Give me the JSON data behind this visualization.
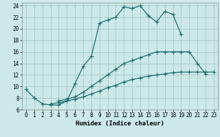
{
  "xlabel": "Humidex (Indice chaleur)",
  "bg_color": "#cce8e8",
  "grid_color": "#aacccc",
  "line_color": "#1a6b6b",
  "xlim": [
    -0.5,
    23.5
  ],
  "ylim": [
    6,
    24.5
  ],
  "xticks": [
    0,
    1,
    2,
    3,
    4,
    5,
    6,
    7,
    8,
    9,
    10,
    11,
    12,
    13,
    14,
    15,
    16,
    17,
    18,
    19,
    20,
    21,
    22,
    23
  ],
  "yticks": [
    6,
    8,
    10,
    12,
    14,
    16,
    18,
    20,
    22,
    24
  ],
  "curve1_x": [
    0,
    1,
    2,
    3,
    4,
    5,
    6,
    7,
    8,
    9,
    10,
    11,
    12,
    13,
    14,
    15,
    16,
    17,
    18,
    19
  ],
  "curve1_y": [
    9.5,
    8.0,
    7.0,
    6.8,
    6.8,
    7.5,
    10.5,
    13.5,
    15.2,
    21.0,
    21.5,
    22.0,
    23.8,
    23.5,
    24.0,
    22.2,
    21.2,
    23.0,
    22.5,
    19.0
  ],
  "curve2_x": [
    4,
    5,
    6,
    7,
    8,
    9,
    10,
    11,
    12,
    13,
    14,
    15,
    16,
    17,
    18,
    19,
    20,
    21,
    22
  ],
  "curve2_y": [
    7.5,
    7.8,
    8.2,
    9.0,
    10.0,
    11.0,
    12.0,
    13.0,
    14.0,
    14.5,
    15.0,
    15.5,
    16.0,
    16.0,
    16.0,
    16.0,
    16.0,
    14.0,
    12.2
  ],
  "curve3_x": [
    3,
    4,
    5,
    6,
    7,
    8,
    9,
    10,
    11,
    12,
    13,
    14,
    15,
    16,
    17,
    18,
    19,
    20,
    21,
    22,
    23
  ],
  "curve3_y": [
    7.0,
    7.2,
    7.5,
    7.8,
    8.2,
    8.7,
    9.2,
    9.8,
    10.2,
    10.8,
    11.2,
    11.5,
    11.8,
    12.0,
    12.2,
    12.4,
    12.5,
    12.5,
    12.5,
    12.5,
    12.5
  ]
}
